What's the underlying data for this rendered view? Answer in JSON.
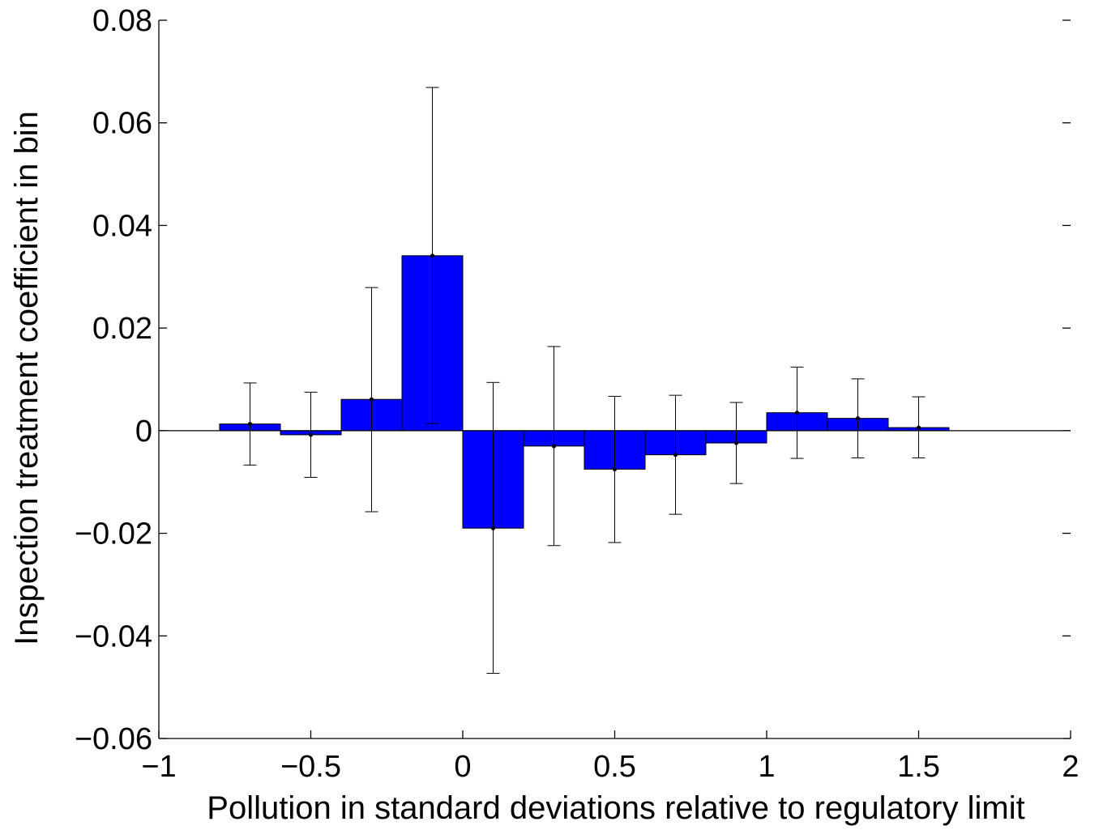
{
  "chart_data": {
    "type": "bar",
    "title": "",
    "xlabel": "Pollution in standard deviations relative to regulatory limit",
    "ylabel": "Inspection treatment coefficient in bin",
    "xlim": [
      -1,
      2
    ],
    "ylim": [
      -0.06,
      0.08
    ],
    "grid": false,
    "bar_color": "#0000ff",
    "errorbar_color": "#000000",
    "bin_width": 0.2,
    "x_ticks": [
      -1,
      -0.5,
      0,
      0.5,
      1,
      1.5,
      2
    ],
    "x_tick_labels": [
      "−1",
      "−0.5",
      "0",
      "0.5",
      "1",
      "1.5",
      "2"
    ],
    "y_ticks": [
      0.08,
      0.06,
      0.04,
      0.02,
      0,
      -0.02,
      -0.04,
      -0.06
    ],
    "y_tick_labels": [
      "0.08",
      "0.06",
      "0.04",
      "0.02",
      "0",
      "−0.02",
      "−0.04",
      "−0.06"
    ],
    "bins": [
      {
        "x": -0.7,
        "value": 0.0013,
        "ci_low": -0.0067,
        "ci_high": 0.0093
      },
      {
        "x": -0.5,
        "value": -0.0008,
        "ci_low": -0.0091,
        "ci_high": 0.0075
      },
      {
        "x": -0.3,
        "value": 0.0061,
        "ci_low": -0.0158,
        "ci_high": 0.0279
      },
      {
        "x": -0.1,
        "value": 0.0341,
        "ci_low": 0.0014,
        "ci_high": 0.0669
      },
      {
        "x": 0.1,
        "value": -0.019,
        "ci_low": -0.0473,
        "ci_high": 0.0094
      },
      {
        "x": 0.3,
        "value": -0.003,
        "ci_low": -0.0224,
        "ci_high": 0.0164
      },
      {
        "x": 0.5,
        "value": -0.0075,
        "ci_low": -0.0218,
        "ci_high": 0.0067
      },
      {
        "x": 0.7,
        "value": -0.0047,
        "ci_low": -0.0163,
        "ci_high": 0.0069
      },
      {
        "x": 0.9,
        "value": -0.0024,
        "ci_low": -0.0103,
        "ci_high": 0.0055
      },
      {
        "x": 1.1,
        "value": 0.0035,
        "ci_low": -0.0054,
        "ci_high": 0.0124
      },
      {
        "x": 1.3,
        "value": 0.0024,
        "ci_low": -0.0053,
        "ci_high": 0.0101
      },
      {
        "x": 1.5,
        "value": 0.0006,
        "ci_low": -0.0053,
        "ci_high": 0.0066
      }
    ]
  }
}
